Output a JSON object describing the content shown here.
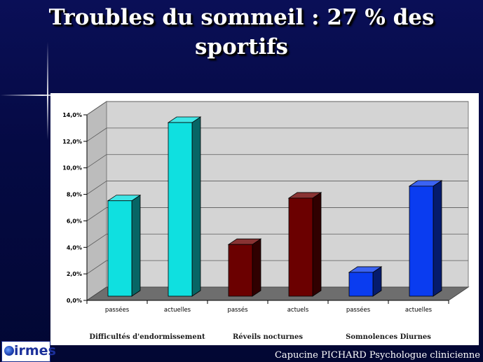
{
  "title": "Troubles du sommeil : 27 % des sportifs",
  "footer": "Capucine PICHARD Psychologue clinicienne",
  "logo_text": "irmes",
  "colors": {
    "cyan": "#0fe0e0",
    "red": "#6b0000",
    "blue": "#0a3cf0"
  },
  "chart_data": {
    "type": "bar",
    "y_ticks": [
      "0,0%",
      "2,0%",
      "4,0%",
      "6,0%",
      "8,0%",
      "10,0%",
      "12,0%",
      "14,0%"
    ],
    "ylim": [
      0,
      14
    ],
    "grid": true,
    "groups": [
      {
        "name": "Difficultés d'endormissement",
        "color": "cyan",
        "bars": [
          {
            "label": "passées",
            "value": 7.2
          },
          {
            "label": "actuelles",
            "value": 13.1
          }
        ]
      },
      {
        "name": "Réveils nocturnes",
        "color": "red",
        "bars": [
          {
            "label": "passés",
            "value": 3.9
          },
          {
            "label": "actuels",
            "value": 7.4
          }
        ]
      },
      {
        "name": "Somnolences Diurnes",
        "color": "blue",
        "bars": [
          {
            "label": "passées",
            "value": 1.8
          },
          {
            "label": "actuelles",
            "value": 8.3
          }
        ]
      }
    ]
  }
}
